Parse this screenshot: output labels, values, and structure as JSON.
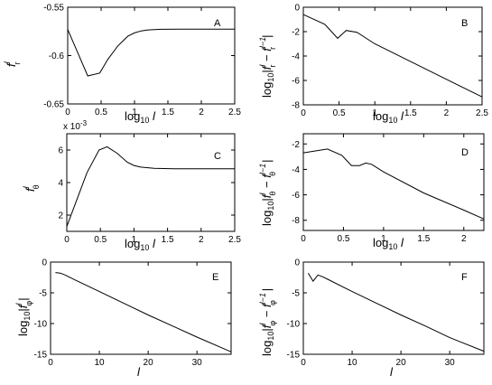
{
  "figure": {
    "chart_data": [
      {
        "panel": "A",
        "type": "line",
        "xlim": [
          0,
          2.5
        ],
        "ylim": [
          -0.65,
          -0.55
        ],
        "xticks": [
          "0",
          "0.5",
          "1",
          "1.5",
          "2",
          "2.5"
        ],
        "yticks": [
          "-0.65",
          "-0.6",
          "-0.55"
        ],
        "x": [
          0,
          0.15,
          0.3,
          0.48,
          0.6,
          0.75,
          0.9,
          1.0,
          1.1,
          1.2,
          1.4,
          1.7,
          2.0,
          2.5
        ],
        "y": [
          -0.573,
          -0.597,
          -0.621,
          -0.618,
          -0.604,
          -0.59,
          -0.58,
          -0.5765,
          -0.5745,
          -0.5735,
          -0.5728,
          -0.5727,
          -0.5727,
          -0.5727
        ]
      },
      {
        "panel": "B",
        "type": "line",
        "xlim": [
          0,
          2.5
        ],
        "ylim": [
          -8,
          0
        ],
        "xticks": [
          "0",
          "0.5",
          "1",
          "1.5",
          "2",
          "2.5"
        ],
        "yticks": [
          "-8",
          "-6",
          "-4",
          "-2",
          "0"
        ],
        "x": [
          0,
          0.3,
          0.48,
          0.6,
          0.75,
          1.0,
          1.5,
          2.0,
          2.5
        ],
        "y": [
          -0.6,
          -1.4,
          -2.55,
          -1.9,
          -2.05,
          -3.0,
          -4.45,
          -5.9,
          -7.35
        ]
      },
      {
        "panel": "C",
        "type": "line",
        "xlim": [
          0,
          2.5
        ],
        "ylim": [
          1,
          7
        ],
        "xticks": [
          "0",
          "0.5",
          "1",
          "1.5",
          "2",
          "2.5"
        ],
        "yticks": [
          "2",
          "4",
          "6"
        ],
        "y_multiplier": "x 10",
        "y_multiplier_exp": "-3",
        "x": [
          0,
          0.3,
          0.48,
          0.6,
          0.75,
          0.9,
          1.0,
          1.1,
          1.3,
          1.6,
          2.0,
          2.5
        ],
        "y": [
          1.3,
          4.6,
          6.0,
          6.2,
          5.8,
          5.25,
          5.05,
          4.95,
          4.87,
          4.85,
          4.85,
          4.85
        ]
      },
      {
        "panel": "D",
        "type": "line",
        "xlim": [
          0,
          2.25
        ],
        "ylim": [
          -8.8,
          -1.2
        ],
        "xticks": [
          "0",
          "0.5",
          "1",
          "1.5",
          "2"
        ],
        "yticks": [
          "-8",
          "-6",
          "-4",
          "-2"
        ],
        "x": [
          0,
          0.3,
          0.48,
          0.6,
          0.7,
          0.78,
          0.85,
          1.0,
          1.5,
          2.0,
          2.25
        ],
        "y": [
          -2.7,
          -2.4,
          -2.9,
          -3.7,
          -3.7,
          -3.5,
          -3.6,
          -4.2,
          -5.85,
          -7.2,
          -7.9
        ]
      },
      {
        "panel": "E",
        "type": "line",
        "xlim": [
          0,
          37
        ],
        "ylim": [
          -15,
          0
        ],
        "xticks": [
          "0",
          "10",
          "20",
          "30"
        ],
        "yticks": [
          "-15",
          "-10",
          "-5",
          "0"
        ],
        "x": [
          1,
          2,
          3,
          5,
          10,
          15,
          20,
          25,
          30,
          37
        ],
        "y": [
          -1.7,
          -1.8,
          -2.1,
          -2.9,
          -4.8,
          -6.7,
          -8.6,
          -10.4,
          -12.2,
          -14.6
        ]
      },
      {
        "panel": "F",
        "type": "line",
        "xlim": [
          0,
          37
        ],
        "ylim": [
          -15,
          0
        ],
        "xticks": [
          "0",
          "10",
          "20",
          "30"
        ],
        "yticks": [
          "-15",
          "-10",
          "-5",
          "0"
        ],
        "x": [
          1,
          2,
          3,
          4,
          5,
          10,
          15,
          20,
          25,
          30,
          37
        ],
        "y": [
          -1.8,
          -3.1,
          -2.1,
          -2.4,
          -2.8,
          -4.8,
          -6.7,
          -8.6,
          -10.4,
          -12.3,
          -14.5
        ]
      }
    ]
  }
}
